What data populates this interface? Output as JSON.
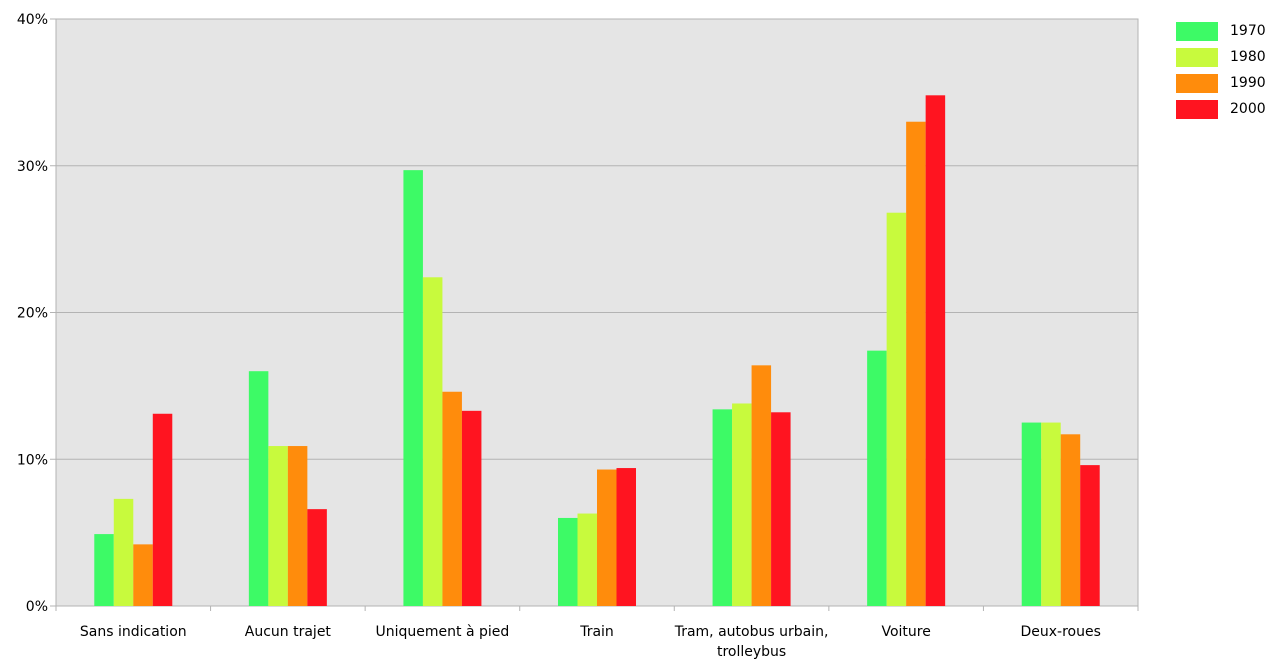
{
  "chart_data": {
    "type": "bar",
    "title": "",
    "xlabel": "",
    "ylabel": "",
    "ylim": [
      0,
      40
    ],
    "yticks": [
      "0%",
      "10%",
      "20%",
      "30%",
      "40%"
    ],
    "grid": true,
    "legend_position": "top-right",
    "categories": [
      "Sans indication",
      "Aucun trajet",
      "Uniquement à pied",
      "Train",
      "Tram, autobus urbain, trolleybus",
      "Voiture",
      "Deux-roues"
    ],
    "series": [
      {
        "name": "1970",
        "color": "#3dfa66",
        "values": [
          4.9,
          16.0,
          29.7,
          6.0,
          13.4,
          17.4,
          12.5
        ]
      },
      {
        "name": "1980",
        "color": "#c8fa3d",
        "values": [
          7.3,
          10.9,
          22.4,
          6.3,
          13.8,
          26.8,
          12.5
        ]
      },
      {
        "name": "1990",
        "color": "#ff8c0c",
        "values": [
          4.2,
          10.9,
          14.6,
          9.3,
          16.4,
          33.0,
          11.7
        ]
      },
      {
        "name": "2000",
        "color": "#ff1420",
        "values": [
          13.1,
          6.6,
          13.3,
          9.4,
          13.2,
          34.8,
          9.6
        ]
      }
    ],
    "colors": {
      "plot_background": "#e5e5e5",
      "grid": "#b3b3b3",
      "axis": "#b3b3b3"
    }
  }
}
